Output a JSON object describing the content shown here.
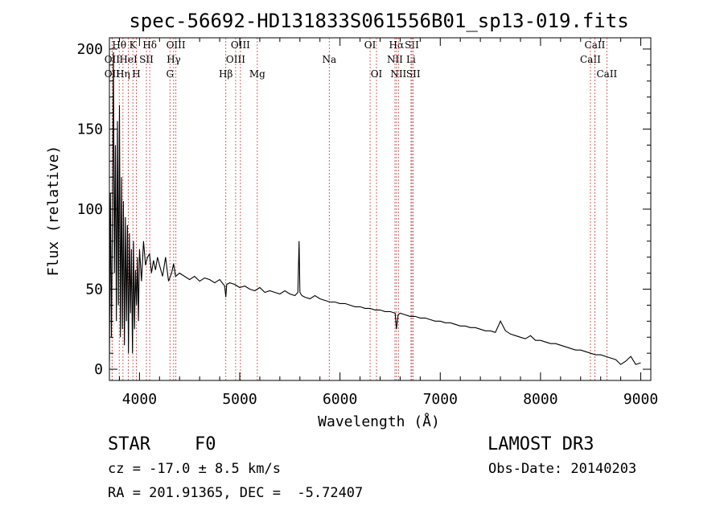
{
  "chart_data": {
    "type": "line",
    "title": "spec-56692-HD131833S061556B01_sp13-019.fits",
    "xlabel": "Wavelength (Å)",
    "ylabel": "Flux (relative)",
    "xlim": [
      3700,
      9100
    ],
    "ylim": [
      -7,
      207
    ],
    "xticks": [
      4000,
      5000,
      6000,
      7000,
      8000,
      9000
    ],
    "yticks": [
      0,
      50,
      100,
      150,
      200
    ],
    "grid": false,
    "series": [
      {
        "name": "spectrum",
        "x": [
          3700,
          3710,
          3720,
          3730,
          3740,
          3750,
          3760,
          3770,
          3780,
          3790,
          3800,
          3810,
          3820,
          3830,
          3840,
          3850,
          3860,
          3870,
          3880,
          3890,
          3900,
          3910,
          3920,
          3930,
          3940,
          3950,
          3960,
          3970,
          3980,
          3990,
          4000,
          4020,
          4040,
          4060,
          4080,
          4100,
          4120,
          4140,
          4160,
          4180,
          4200,
          4230,
          4260,
          4290,
          4320,
          4340,
          4360,
          4400,
          4450,
          4500,
          4550,
          4600,
          4650,
          4700,
          4750,
          4800,
          4850,
          4861,
          4870,
          4900,
          4950,
          5000,
          5050,
          5100,
          5150,
          5200,
          5250,
          5300,
          5350,
          5400,
          5450,
          5500,
          5550,
          5580,
          5592,
          5600,
          5620,
          5650,
          5700,
          5750,
          5800,
          5850,
          5900,
          5950,
          6000,
          6050,
          6100,
          6150,
          6200,
          6250,
          6300,
          6350,
          6400,
          6450,
          6500,
          6550,
          6563,
          6580,
          6600,
          6650,
          6700,
          6750,
          6800,
          6850,
          6900,
          6950,
          7000,
          7050,
          7100,
          7150,
          7200,
          7250,
          7300,
          7350,
          7400,
          7450,
          7500,
          7550,
          7600,
          7650,
          7700,
          7750,
          7800,
          7850,
          7900,
          7950,
          8000,
          8050,
          8100,
          8150,
          8200,
          8250,
          8300,
          8350,
          8400,
          8450,
          8500,
          8550,
          8600,
          8650,
          8700,
          8750,
          8800,
          8850,
          8900,
          8950,
          9000
        ],
        "values": [
          5,
          110,
          20,
          90,
          198,
          60,
          140,
          30,
          155,
          40,
          165,
          20,
          120,
          25,
          105,
          15,
          95,
          30,
          90,
          10,
          85,
          35,
          75,
          10,
          80,
          25,
          62,
          40,
          70,
          30,
          75,
          55,
          80,
          65,
          70,
          72,
          60,
          68,
          62,
          70,
          65,
          58,
          70,
          55,
          60,
          66,
          58,
          60,
          58,
          56,
          58,
          55,
          57,
          56,
          54,
          56,
          52,
          45,
          53,
          54,
          53,
          51,
          52,
          50,
          49,
          51,
          48,
          49,
          48,
          47,
          49,
          47,
          46,
          48,
          80,
          48,
          46,
          45,
          44,
          46,
          44,
          43,
          42,
          42,
          41,
          41,
          40,
          39,
          39,
          38,
          38,
          37,
          37,
          36,
          36,
          35,
          25,
          34,
          35,
          34,
          33,
          33,
          32,
          32,
          31,
          30,
          30,
          29,
          29,
          28,
          27,
          27,
          26,
          26,
          25,
          24,
          24,
          23,
          30,
          24,
          22,
          21,
          20,
          19,
          21,
          18,
          18,
          17,
          16,
          16,
          15,
          14,
          13,
          12,
          12,
          11,
          10,
          9,
          9,
          8,
          7,
          6,
          3,
          5,
          8,
          3,
          4
        ]
      }
    ],
    "lines": [
      {
        "name": "OII",
        "w": 3727,
        "row": 1,
        "col": "#cc5555"
      },
      {
        "name": "OII",
        "w": 3727,
        "row": 2,
        "col": "#cc5555"
      },
      {
        "name": "Hθ",
        "w": 3798,
        "row": 0,
        "col": "#cc5555"
      },
      {
        "name": "Hη",
        "w": 3835,
        "row": 2,
        "col": "#cc5555"
      },
      {
        "name": "K",
        "w": 3934,
        "row": 0,
        "col": "#cc5555"
      },
      {
        "name": "H",
        "w": 3969,
        "row": 2,
        "col": "#cc5555"
      },
      {
        "name": "HeI",
        "w": 3889,
        "row": 1,
        "col": "#cc5555"
      },
      {
        "name": "SII",
        "w": 4069,
        "row": 1,
        "col": "#cc5555"
      },
      {
        "name": "Hδ",
        "w": 4102,
        "row": 0,
        "col": "#cc5555"
      },
      {
        "name": "G",
        "w": 4304,
        "row": 2,
        "col": "#cc5555"
      },
      {
        "name": "Hγ",
        "w": 4341,
        "row": 1,
        "col": "#cc5555"
      },
      {
        "name": "OIII",
        "w": 4363,
        "row": 0,
        "col": "#cc5555"
      },
      {
        "name": "Hβ",
        "w": 4861,
        "row": 2,
        "col": "#cc5555"
      },
      {
        "name": "OIII",
        "w": 4959,
        "row": 1,
        "col": "#cc5555"
      },
      {
        "name": "OIII",
        "w": 5007,
        "row": 0,
        "col": "#cc5555"
      },
      {
        "name": "Mg",
        "w": 5175,
        "row": 2,
        "col": "#cc5555"
      },
      {
        "name": "Na",
        "w": 5893,
        "row": 1,
        "col": "#cc5555"
      },
      {
        "name": "OI",
        "w": 6300,
        "row": 0,
        "col": "#cc5555"
      },
      {
        "name": "OI",
        "w": 6364,
        "row": 2,
        "col": "#cc5555"
      },
      {
        "name": "NII",
        "w": 6548,
        "row": 1,
        "col": "#cc5555"
      },
      {
        "name": "Hα",
        "w": 6563,
        "row": 0,
        "col": "#cc5555"
      },
      {
        "name": "NII",
        "w": 6583,
        "row": 2,
        "col": "#cc5555"
      },
      {
        "name": "Li",
        "w": 6708,
        "row": 1,
        "col": "#cc5555"
      },
      {
        "name": "SII",
        "w": 6717,
        "row": 0,
        "col": "#cc5555"
      },
      {
        "name": "SII",
        "w": 6731,
        "row": 2,
        "col": "#cc5555"
      },
      {
        "name": "CaII",
        "w": 8498,
        "row": 1,
        "col": "#cc5555"
      },
      {
        "name": "CaII",
        "w": 8542,
        "row": 0,
        "col": "#cc5555"
      },
      {
        "name": "CaII",
        "w": 8662,
        "row": 2,
        "col": "#cc5555"
      }
    ]
  },
  "info": {
    "class_label": "STAR",
    "subclass": "F0",
    "survey": "LAMOST DR3",
    "velocity": "cz = -17.0 ± 8.5 km/s",
    "obs_date": "Obs-Date: 20140203",
    "coords": "RA = 201.91365, DEC =  -5.72407"
  }
}
